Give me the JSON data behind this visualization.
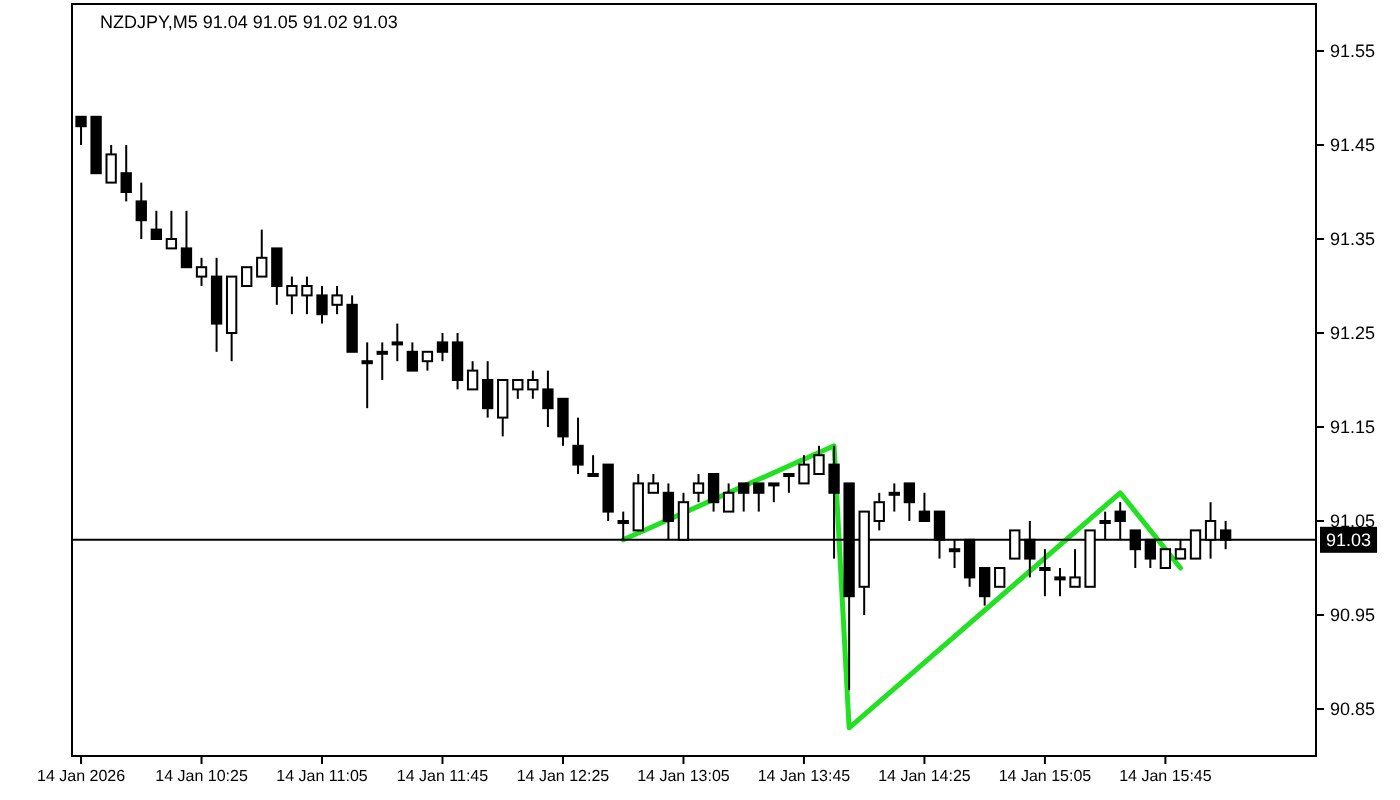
{
  "chart_data": {
    "type": "candlestick",
    "title": "NZDJPY,M5  91.04 91.05 91.02 91.03",
    "x": [
      "2026-01-14T09:45",
      "2026-01-14T09:50",
      "2026-01-14T09:55",
      "2026-01-14T10:00",
      "2026-01-14T10:05",
      "2026-01-14T10:10",
      "2026-01-14T10:15",
      "2026-01-14T10:20",
      "2026-01-14T10:25",
      "2026-01-14T10:30",
      "2026-01-14T10:35",
      "2026-01-14T10:40",
      "2026-01-14T10:45",
      "2026-01-14T10:50",
      "2026-01-14T10:55",
      "2026-01-14T11:00",
      "2026-01-14T11:05",
      "2026-01-14T11:10",
      "2026-01-14T11:15",
      "2026-01-14T11:20",
      "2026-01-14T11:25",
      "2026-01-14T11:30",
      "2026-01-14T11:35",
      "2026-01-14T11:40",
      "2026-01-14T11:45",
      "2026-01-14T11:50",
      "2026-01-14T11:55",
      "2026-01-14T12:00",
      "2026-01-14T12:05",
      "2026-01-14T12:10",
      "2026-01-14T12:15",
      "2026-01-14T12:20",
      "2026-01-14T12:25",
      "2026-01-14T12:30",
      "2026-01-14T12:35",
      "2026-01-14T12:40",
      "2026-01-14T12:45",
      "2026-01-14T12:50",
      "2026-01-14T12:55",
      "2026-01-14T13:00",
      "2026-01-14T13:05",
      "2026-01-14T13:10",
      "2026-01-14T13:15",
      "2026-01-14T13:20",
      "2026-01-14T13:25",
      "2026-01-14T13:30",
      "2026-01-14T13:35",
      "2026-01-14T13:40",
      "2026-01-14T13:45",
      "2026-01-14T13:50",
      "2026-01-14T13:55",
      "2026-01-14T14:00",
      "2026-01-14T14:05",
      "2026-01-14T14:10",
      "2026-01-14T14:15",
      "2026-01-14T14:20",
      "2026-01-14T14:25",
      "2026-01-14T14:30",
      "2026-01-14T14:35",
      "2026-01-14T14:40",
      "2026-01-14T14:45",
      "2026-01-14T14:50",
      "2026-01-14T14:55",
      "2026-01-14T15:00",
      "2026-01-14T15:05",
      "2026-01-14T15:10",
      "2026-01-14T15:15",
      "2026-01-14T15:20",
      "2026-01-14T15:25",
      "2026-01-14T15:30",
      "2026-01-14T15:35",
      "2026-01-14T15:40",
      "2026-01-14T15:45",
      "2026-01-14T15:50",
      "2026-01-14T15:55",
      "2026-01-14T16:00",
      "2026-01-14T16:05"
    ],
    "ohlc": [
      [
        91.48,
        91.48,
        91.45,
        91.47
      ],
      [
        91.48,
        91.48,
        91.42,
        91.42
      ],
      [
        91.41,
        91.45,
        91.41,
        91.44
      ],
      [
        91.42,
        91.45,
        91.39,
        91.4
      ],
      [
        91.39,
        91.41,
        91.35,
        91.37
      ],
      [
        91.36,
        91.38,
        91.35,
        91.35
      ],
      [
        91.34,
        91.38,
        91.34,
        91.35
      ],
      [
        91.34,
        91.38,
        91.32,
        91.32
      ],
      [
        91.31,
        91.33,
        91.3,
        91.32
      ],
      [
        91.31,
        91.33,
        91.23,
        91.26
      ],
      [
        91.25,
        91.31,
        91.22,
        91.31
      ],
      [
        91.3,
        91.32,
        91.3,
        91.32
      ],
      [
        91.31,
        91.36,
        91.31,
        91.33
      ],
      [
        91.34,
        91.34,
        91.28,
        91.3
      ],
      [
        91.29,
        91.31,
        91.27,
        91.3
      ],
      [
        91.29,
        91.31,
        91.27,
        91.3
      ],
      [
        91.29,
        91.3,
        91.26,
        91.27
      ],
      [
        91.28,
        91.3,
        91.27,
        91.29
      ],
      [
        91.28,
        91.29,
        91.23,
        91.23
      ],
      [
        91.22,
        91.24,
        91.17,
        91.22
      ],
      [
        91.23,
        91.24,
        91.2,
        91.23
      ],
      [
        91.24,
        91.26,
        91.22,
        91.24
      ],
      [
        91.23,
        91.24,
        91.21,
        91.21
      ],
      [
        91.22,
        91.23,
        91.21,
        91.23
      ],
      [
        91.24,
        91.25,
        91.22,
        91.23
      ],
      [
        91.24,
        91.25,
        91.19,
        91.2
      ],
      [
        91.19,
        91.22,
        91.19,
        91.21
      ],
      [
        91.2,
        91.22,
        91.16,
        91.17
      ],
      [
        91.16,
        91.2,
        91.14,
        91.2
      ],
      [
        91.19,
        91.2,
        91.18,
        91.2
      ],
      [
        91.19,
        91.21,
        91.18,
        91.2
      ],
      [
        91.19,
        91.21,
        91.15,
        91.17
      ],
      [
        91.18,
        91.18,
        91.13,
        91.14
      ],
      [
        91.13,
        91.16,
        91.1,
        91.11
      ],
      [
        91.1,
        91.12,
        91.1,
        91.1
      ],
      [
        91.11,
        91.11,
        91.05,
        91.06
      ],
      [
        91.05,
        91.06,
        91.03,
        91.05
      ],
      [
        91.04,
        91.1,
        91.04,
        91.09
      ],
      [
        91.08,
        91.1,
        91.08,
        91.09
      ],
      [
        91.08,
        91.09,
        91.03,
        91.05
      ],
      [
        91.03,
        91.08,
        91.03,
        91.07
      ],
      [
        91.08,
        91.1,
        91.07,
        91.09
      ],
      [
        91.1,
        91.1,
        91.06,
        91.07
      ],
      [
        91.06,
        91.09,
        91.06,
        91.08
      ],
      [
        91.09,
        91.09,
        91.06,
        91.08
      ],
      [
        91.09,
        91.09,
        91.06,
        91.08
      ],
      [
        91.09,
        91.09,
        91.07,
        91.09
      ],
      [
        91.1,
        91.1,
        91.08,
        91.1
      ],
      [
        91.09,
        91.12,
        91.09,
        91.11
      ],
      [
        91.1,
        91.13,
        91.1,
        91.12
      ],
      [
        91.11,
        91.13,
        91.01,
        91.08
      ],
      [
        91.09,
        91.09,
        90.87,
        90.97
      ],
      [
        90.98,
        91.06,
        90.95,
        91.06
      ],
      [
        91.05,
        91.08,
        91.04,
        91.07
      ],
      [
        91.08,
        91.09,
        91.06,
        91.08
      ],
      [
        91.09,
        91.09,
        91.05,
        91.07
      ],
      [
        91.06,
        91.08,
        91.05,
        91.05
      ],
      [
        91.06,
        91.06,
        91.01,
        91.03
      ],
      [
        91.02,
        91.03,
        91.0,
        91.02
      ],
      [
        91.03,
        91.03,
        90.98,
        90.99
      ],
      [
        91.0,
        91.0,
        90.96,
        90.97
      ],
      [
        90.98,
        91.0,
        90.98,
        91.0
      ],
      [
        91.01,
        91.04,
        91.01,
        91.04
      ],
      [
        91.03,
        91.05,
        90.99,
        91.01
      ],
      [
        91.0,
        91.02,
        90.97,
        91.0
      ],
      [
        90.99,
        91.0,
        90.97,
        90.99
      ],
      [
        90.98,
        91.02,
        90.98,
        90.99
      ],
      [
        90.98,
        91.04,
        90.98,
        91.04
      ],
      [
        91.05,
        91.06,
        91.03,
        91.05
      ],
      [
        91.06,
        91.07,
        91.03,
        91.05
      ],
      [
        91.04,
        91.04,
        91.0,
        91.02
      ],
      [
        91.03,
        91.03,
        91.0,
        91.01
      ],
      [
        91.0,
        91.02,
        91.0,
        91.02
      ],
      [
        91.01,
        91.03,
        91.01,
        91.02
      ],
      [
        91.01,
        91.04,
        91.01,
        91.04
      ],
      [
        91.03,
        91.07,
        91.01,
        91.05
      ],
      [
        91.04,
        91.05,
        91.02,
        91.03
      ]
    ],
    "series": [
      {
        "type": "line",
        "color": "#22e022",
        "x": [
          "2026-01-14T12:45",
          "2026-01-14T13:55",
          "2026-01-14T14:00",
          "2026-01-14T15:30",
          "2026-01-14T15:50"
        ],
        "values": [
          91.03,
          91.13,
          90.83,
          91.08,
          91.0
        ]
      }
    ],
    "xlim": [
      "2026-01-14T09:42",
      "2026-01-14T16:35"
    ],
    "xticks": [
      {
        "value": "2026-01-14T09:45",
        "label": "14 Jan 2026"
      },
      {
        "value": "2026-01-14T10:25",
        "label": "14 Jan 10:25"
      },
      {
        "value": "2026-01-14T11:05",
        "label": "14 Jan 11:05"
      },
      {
        "value": "2026-01-14T11:45",
        "label": "14 Jan 11:45"
      },
      {
        "value": "2026-01-14T12:25",
        "label": "14 Jan 12:25"
      },
      {
        "value": "2026-01-14T13:05",
        "label": "14 Jan 13:05"
      },
      {
        "value": "2026-01-14T13:45",
        "label": "14 Jan 13:45"
      },
      {
        "value": "2026-01-14T14:25",
        "label": "14 Jan 14:25"
      },
      {
        "value": "2026-01-14T15:05",
        "label": "14 Jan 15:05"
      },
      {
        "value": "2026-01-14T15:45",
        "label": "14 Jan 15:45"
      }
    ],
    "ylim": [
      90.8,
      91.6
    ],
    "yticks": [
      90.85,
      90.95,
      91.05,
      91.15,
      91.25,
      91.35,
      91.45,
      91.55
    ],
    "ref_lines": [
      {
        "axis": "y",
        "value": 91.03,
        "label": "91.03",
        "color": "#000000"
      }
    ],
    "grid": false
  }
}
